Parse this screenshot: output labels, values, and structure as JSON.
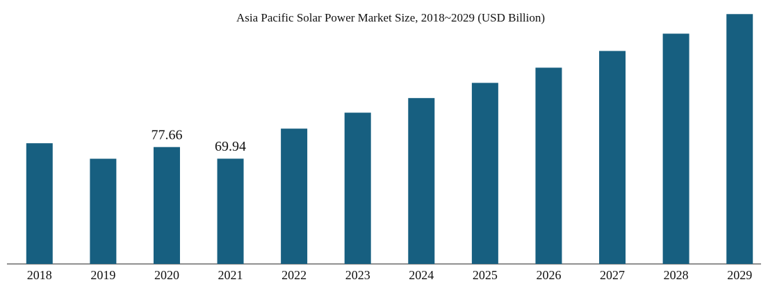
{
  "chart_data": {
    "type": "bar",
    "title": "Asia Pacific Solar Power Market Size, 2018~2029 (USD Billion)",
    "categories": [
      "2018",
      "2019",
      "2020",
      "2021",
      "2022",
      "2023",
      "2024",
      "2025",
      "2026",
      "2027",
      "2028",
      "2029"
    ],
    "values": [
      80.2,
      69.9,
      77.66,
      69.94,
      89.9,
      100.5,
      110.2,
      120.3,
      130.4,
      141.5,
      153.0,
      166.0
    ],
    "value_labels": [
      null,
      null,
      "77.66",
      "69.94",
      null,
      null,
      null,
      null,
      null,
      null,
      null,
      null
    ],
    "color": "#175f80"
  }
}
